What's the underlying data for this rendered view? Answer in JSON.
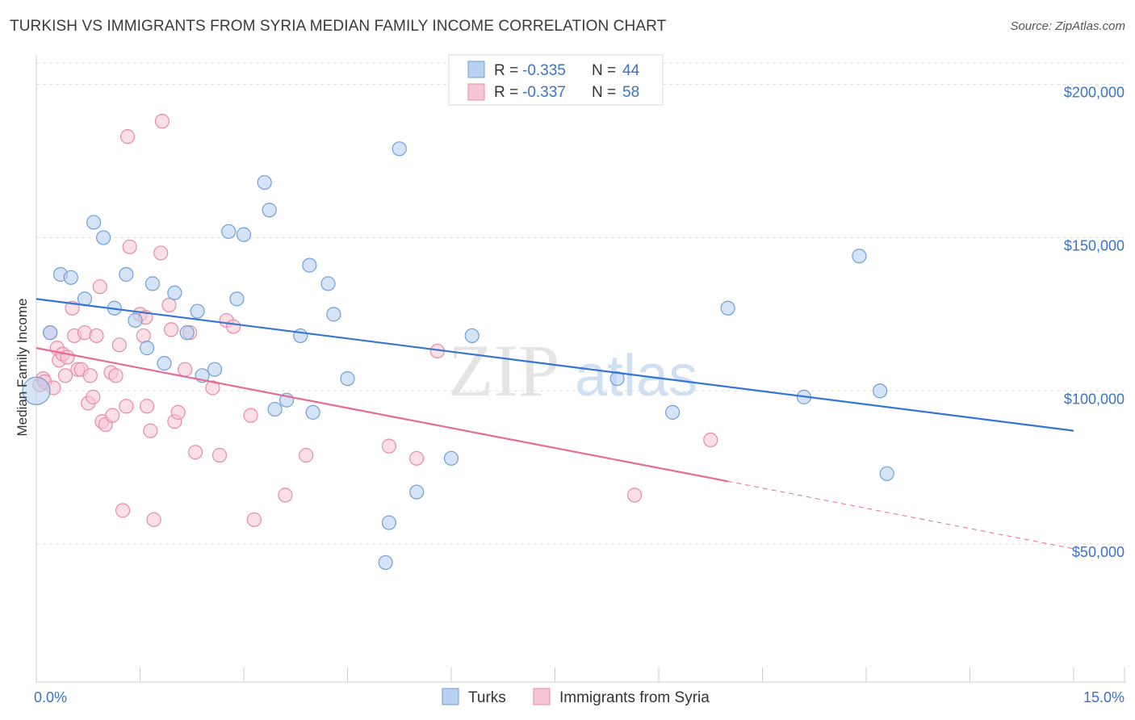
{
  "header": {
    "title": "TURKISH VS IMMIGRANTS FROM SYRIA MEDIAN FAMILY INCOME CORRELATION CHART",
    "source": "Source: ZipAtlas.com"
  },
  "watermark": {
    "zip": "ZIP",
    "atlas": "atlas"
  },
  "colors": {
    "turks_fill": "#b9d1f0",
    "turks_stroke": "#6f9fd8",
    "turks_line": "#3676d1",
    "syria_fill": "#f7c5d4",
    "syria_stroke": "#e88aa8",
    "syria_line": "#e46c97",
    "axis_label": "#3b73c4",
    "grid": "#dddddd"
  },
  "legend": {
    "rows": [
      {
        "r_label": "R =",
        "r_value": "-0.335",
        "n_label": "N =",
        "n_value": "44"
      },
      {
        "r_label": "R =",
        "r_value": "-0.337",
        "n_label": "N =",
        "n_value": "58"
      }
    ]
  },
  "bottom_legend": {
    "turks": "Turks",
    "syria": "Immigrants from Syria"
  },
  "chart_data": {
    "type": "scatter",
    "title": "TURKISH VS IMMIGRANTS FROM SYRIA MEDIAN FAMILY INCOME CORRELATION CHART",
    "xlabel": "",
    "ylabel": "Median Family Income",
    "xlim": [
      0,
      15
    ],
    "ylim": [
      5000,
      207000
    ],
    "x_tick_labels": [
      "0.0%",
      "15.0%"
    ],
    "y_ticks": [
      50000,
      100000,
      150000,
      200000
    ],
    "y_tick_labels": [
      "$50,000",
      "$100,000",
      "$150,000",
      "$200,000"
    ],
    "series": [
      {
        "name": "Turks",
        "r": -0.335,
        "n": 44,
        "trend": {
          "x": [
            0,
            15
          ],
          "y": [
            130000,
            87000
          ]
        },
        "points": [
          [
            0.0,
            100000
          ],
          [
            0.2,
            119000
          ],
          [
            0.35,
            138000
          ],
          [
            0.5,
            137000
          ],
          [
            0.7,
            130000
          ],
          [
            0.83,
            155000
          ],
          [
            0.97,
            150000
          ],
          [
            1.13,
            127000
          ],
          [
            1.3,
            138000
          ],
          [
            1.43,
            123000
          ],
          [
            1.6,
            114000
          ],
          [
            1.68,
            135000
          ],
          [
            1.85,
            109000
          ],
          [
            2.0,
            132000
          ],
          [
            2.18,
            119000
          ],
          [
            2.33,
            126000
          ],
          [
            2.4,
            105000
          ],
          [
            2.58,
            107000
          ],
          [
            2.78,
            152000
          ],
          [
            2.9,
            130000
          ],
          [
            3.0,
            151000
          ],
          [
            3.3,
            168000
          ],
          [
            3.37,
            159000
          ],
          [
            3.45,
            94000
          ],
          [
            3.62,
            97000
          ],
          [
            3.82,
            118000
          ],
          [
            3.95,
            141000
          ],
          [
            4.0,
            93000
          ],
          [
            4.22,
            135000
          ],
          [
            4.3,
            125000
          ],
          [
            4.5,
            104000
          ],
          [
            5.1,
            57000
          ],
          [
            5.05,
            44000
          ],
          [
            5.25,
            179000
          ],
          [
            5.5,
            67000
          ],
          [
            6.0,
            78000
          ],
          [
            6.3,
            118000
          ],
          [
            8.4,
            104000
          ],
          [
            9.2,
            93000
          ],
          [
            10.0,
            127000
          ],
          [
            11.1,
            98000
          ],
          [
            11.9,
            144000
          ],
          [
            12.2,
            100000
          ],
          [
            12.3,
            73000
          ]
        ]
      },
      {
        "name": "Immigrants from Syria",
        "r": -0.337,
        "n": 58,
        "trend": {
          "x": [
            0,
            10.0
          ],
          "y": [
            114000,
            70500
          ]
        },
        "trend_dashed": {
          "x": [
            10.0,
            15
          ],
          "y": [
            70500,
            48500
          ]
        },
        "points": [
          [
            0.05,
            102000
          ],
          [
            0.1,
            104000
          ],
          [
            0.12,
            103000
          ],
          [
            0.2,
            119000
          ],
          [
            0.25,
            101000
          ],
          [
            0.3,
            114000
          ],
          [
            0.33,
            110000
          ],
          [
            0.38,
            112000
          ],
          [
            0.42,
            105000
          ],
          [
            0.45,
            111000
          ],
          [
            0.52,
            127000
          ],
          [
            0.55,
            118000
          ],
          [
            0.6,
            107000
          ],
          [
            0.65,
            107000
          ],
          [
            0.7,
            119000
          ],
          [
            0.75,
            96000
          ],
          [
            0.78,
            105000
          ],
          [
            0.82,
            98000
          ],
          [
            0.87,
            118000
          ],
          [
            0.92,
            134000
          ],
          [
            0.95,
            90000
          ],
          [
            1.0,
            89000
          ],
          [
            1.08,
            106000
          ],
          [
            1.1,
            92000
          ],
          [
            1.15,
            105000
          ],
          [
            1.2,
            115000
          ],
          [
            1.25,
            61000
          ],
          [
            1.3,
            95000
          ],
          [
            1.32,
            183000
          ],
          [
            1.35,
            147000
          ],
          [
            1.5,
            125000
          ],
          [
            1.55,
            118000
          ],
          [
            1.58,
            124000
          ],
          [
            1.6,
            95000
          ],
          [
            1.65,
            87000
          ],
          [
            1.7,
            58000
          ],
          [
            1.8,
            145000
          ],
          [
            1.82,
            188000
          ],
          [
            1.92,
            128000
          ],
          [
            1.95,
            120000
          ],
          [
            2.0,
            90000
          ],
          [
            2.05,
            93000
          ],
          [
            2.15,
            107000
          ],
          [
            2.22,
            119000
          ],
          [
            2.3,
            80000
          ],
          [
            2.65,
            79000
          ],
          [
            2.75,
            123000
          ],
          [
            2.85,
            121000
          ],
          [
            3.1,
            92000
          ],
          [
            3.15,
            58000
          ],
          [
            3.6,
            66000
          ],
          [
            3.9,
            79000
          ],
          [
            5.1,
            82000
          ],
          [
            5.5,
            78000
          ],
          [
            5.8,
            113000
          ],
          [
            8.65,
            66000
          ],
          [
            9.75,
            84000
          ],
          [
            2.55,
            101000
          ]
        ]
      }
    ]
  }
}
